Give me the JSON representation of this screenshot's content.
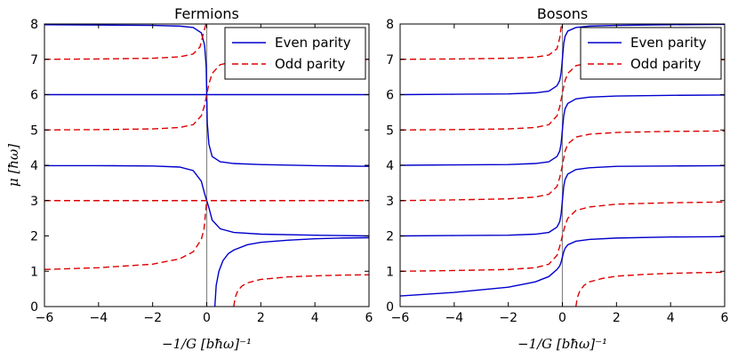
{
  "chart_data": [
    {
      "type": "line",
      "title": "Fermions",
      "xlabel": "−1/G [bħω]⁻¹",
      "ylabel": "μ [ħω]",
      "xlim": [
        -6,
        6
      ],
      "ylim": [
        0,
        8
      ],
      "xticks": [
        "−6",
        "−4",
        "−2",
        "0",
        "2",
        "4",
        "6"
      ],
      "yticks": [
        "0",
        "1",
        "2",
        "3",
        "4",
        "5",
        "6",
        "7",
        "8"
      ],
      "legend": {
        "position": "top-right",
        "entries": [
          "Even parity",
          "Odd parity"
        ]
      },
      "series": [
        {
          "name": "Even parity",
          "color": "#0000cc",
          "style": "solid",
          "x": [
            -6,
            -4,
            -2,
            -1,
            -0.5,
            -0.2,
            -0.08,
            -0.02,
            0,
            0.02,
            0.08,
            0.2,
            0.5,
            1,
            2,
            4,
            6
          ],
          "y": [
            7.98,
            7.97,
            7.96,
            7.94,
            7.9,
            7.75,
            7.4,
            6.8,
            6.0,
            5.2,
            4.6,
            4.25,
            4.1,
            4.05,
            4.02,
            3.99,
            3.97
          ]
        },
        {
          "name": "Even parity",
          "color": "#0000cc",
          "style": "solid",
          "x": [
            -6,
            6
          ],
          "y": [
            6.0,
            6.0
          ]
        },
        {
          "name": "Even parity",
          "color": "#0000cc",
          "style": "solid",
          "x": [
            -6,
            -4,
            -2,
            -1,
            -0.5,
            -0.2,
            -0.08,
            0,
            0.08,
            0.2,
            0.5,
            1,
            2,
            4,
            6
          ],
          "y": [
            3.99,
            3.99,
            3.98,
            3.95,
            3.85,
            3.55,
            3.2,
            3.0,
            2.8,
            2.45,
            2.2,
            2.1,
            2.05,
            2.02,
            2.0
          ]
        },
        {
          "name": "Even parity",
          "color": "#0000cc",
          "style": "solid",
          "x": [
            0.3,
            0.35,
            0.45,
            0.6,
            0.8,
            1,
            1.5,
            2,
            3,
            4,
            5,
            6
          ],
          "y": [
            0,
            0.6,
            1.0,
            1.3,
            1.5,
            1.6,
            1.75,
            1.82,
            1.88,
            1.92,
            1.94,
            1.95
          ]
        },
        {
          "name": "Odd parity",
          "color": "#dd0000",
          "style": "dashed",
          "x": [
            -6,
            -4,
            -2,
            -1,
            -0.5,
            -0.25,
            -0.1,
            -0.03
          ],
          "y": [
            7.0,
            7.01,
            7.03,
            7.07,
            7.15,
            7.35,
            7.8,
            8.0
          ]
        },
        {
          "name": "Odd parity",
          "color": "#dd0000",
          "style": "dashed",
          "x": [
            -6,
            -4,
            -2,
            -1,
            -0.5,
            -0.2,
            -0.08,
            0,
            0.08,
            0.2,
            0.5,
            1,
            2,
            4,
            6
          ],
          "y": [
            5.0,
            5.01,
            5.03,
            5.07,
            5.15,
            5.4,
            5.7,
            6.0,
            6.3,
            6.6,
            6.85,
            6.93,
            6.97,
            6.99,
            7.0
          ]
        },
        {
          "name": "Odd parity",
          "color": "#dd0000",
          "style": "dashed",
          "x": [
            -6,
            -4,
            -2,
            -1,
            -0.5,
            -0.2,
            -0.08,
            0,
            0.08,
            0.2,
            0.5,
            1,
            2,
            4,
            6
          ],
          "y": [
            3.0,
            3.0,
            3.0,
            3.0,
            3.0,
            3.0,
            3.0,
            3.0,
            3.0,
            3.0,
            3.0,
            3.0,
            3.0,
            3.0,
            3.0
          ]
        },
        {
          "name": "Odd parity",
          "color": "#dd0000",
          "style": "dashed",
          "x": [
            -6,
            -4,
            -2,
            -1,
            -0.5,
            -0.2,
            -0.1,
            -0.05,
            0
          ],
          "y": [
            1.05,
            1.1,
            1.2,
            1.35,
            1.55,
            1.9,
            2.2,
            2.6,
            3.0
          ]
        },
        {
          "name": "Odd parity",
          "color": "#dd0000",
          "style": "dashed",
          "x": [
            1.0,
            1.05,
            1.15,
            1.3,
            1.5,
            2,
            3,
            4,
            5,
            6
          ],
          "y": [
            0,
            0.25,
            0.45,
            0.58,
            0.67,
            0.77,
            0.84,
            0.87,
            0.89,
            0.9
          ]
        }
      ]
    },
    {
      "type": "line",
      "title": "Bosons",
      "xlabel": "−1/G [bħω]⁻¹",
      "ylabel": "",
      "xlim": [
        -6,
        6
      ],
      "ylim": [
        0,
        8
      ],
      "xticks": [
        "−6",
        "−4",
        "−2",
        "0",
        "2",
        "4",
        "6"
      ],
      "yticks": [
        "0",
        "1",
        "2",
        "3",
        "4",
        "5",
        "6",
        "7",
        "8"
      ],
      "legend": {
        "position": "top-right",
        "entries": [
          "Even parity",
          "Odd parity"
        ]
      },
      "series": [
        {
          "name": "Even parity",
          "color": "#0000cc",
          "style": "solid",
          "x": [
            -6,
            -4,
            -2,
            -1,
            -0.5,
            -0.2,
            -0.1,
            -0.05,
            0,
            0.05,
            0.1,
            0.2,
            0.5,
            1,
            2,
            4,
            6
          ],
          "y": [
            0.3,
            0.4,
            0.55,
            0.7,
            0.85,
            1.05,
            1.15,
            1.25,
            1.4,
            1.55,
            1.65,
            1.75,
            1.85,
            1.9,
            1.94,
            1.97,
            1.98
          ]
        },
        {
          "name": "Even parity",
          "color": "#0000cc",
          "style": "solid",
          "x": [
            -6,
            -4,
            -2,
            -1,
            -0.5,
            -0.2,
            -0.1,
            -0.05,
            0,
            0.05,
            0.1,
            0.2,
            0.5,
            1,
            2,
            4,
            6
          ],
          "y": [
            2.0,
            2.01,
            2.02,
            2.05,
            2.1,
            2.25,
            2.4,
            2.6,
            3.0,
            3.4,
            3.6,
            3.75,
            3.88,
            3.93,
            3.97,
            3.98,
            3.99
          ]
        },
        {
          "name": "Even parity",
          "color": "#0000cc",
          "style": "solid",
          "x": [
            -6,
            -4,
            -2,
            -1,
            -0.5,
            -0.2,
            -0.1,
            -0.05,
            0,
            0.05,
            0.1,
            0.2,
            0.5,
            1,
            2,
            4,
            6
          ],
          "y": [
            4.0,
            4.01,
            4.02,
            4.05,
            4.1,
            4.25,
            4.4,
            4.6,
            5.0,
            5.4,
            5.6,
            5.75,
            5.88,
            5.93,
            5.96,
            5.98,
            5.99
          ]
        },
        {
          "name": "Even parity",
          "color": "#0000cc",
          "style": "solid",
          "x": [
            -6,
            -4,
            -2,
            -1,
            -0.5,
            -0.2,
            -0.1,
            -0.05,
            0,
            0.05,
            0.1,
            0.2,
            0.5,
            1,
            2,
            4,
            6
          ],
          "y": [
            6.0,
            6.01,
            6.02,
            6.05,
            6.1,
            6.25,
            6.4,
            6.6,
            7.0,
            7.45,
            7.65,
            7.8,
            7.9,
            7.94,
            7.96,
            7.98,
            7.99
          ]
        },
        {
          "name": "Odd parity",
          "color": "#dd0000",
          "style": "dashed",
          "x": [
            -6,
            -4,
            -2,
            -1,
            -0.5,
            -0.2,
            -0.1,
            -0.03
          ],
          "y": [
            7.0,
            7.01,
            7.03,
            7.06,
            7.12,
            7.3,
            7.6,
            8.0
          ]
        },
        {
          "name": "Odd parity",
          "color": "#dd0000",
          "style": "dashed",
          "x": [
            -6,
            -4,
            -2,
            -1,
            -0.5,
            -0.2,
            -0.1,
            0,
            0.1,
            0.2,
            0.5,
            1,
            2,
            4,
            6
          ],
          "y": [
            5.0,
            5.01,
            5.03,
            5.07,
            5.15,
            5.4,
            5.65,
            6.05,
            6.4,
            6.6,
            6.82,
            6.9,
            6.95,
            6.98,
            6.99
          ]
        },
        {
          "name": "Odd parity",
          "color": "#dd0000",
          "style": "dashed",
          "x": [
            -6,
            -4,
            -2,
            -1,
            -0.5,
            -0.2,
            -0.1,
            0,
            0.1,
            0.2,
            0.5,
            1,
            2,
            4,
            6
          ],
          "y": [
            3.0,
            3.02,
            3.05,
            3.1,
            3.18,
            3.4,
            3.65,
            4.0,
            4.4,
            4.6,
            4.8,
            4.88,
            4.93,
            4.96,
            4.97
          ]
        },
        {
          "name": "Odd parity",
          "color": "#dd0000",
          "style": "dashed",
          "x": [
            -6,
            -4,
            -2,
            -1,
            -0.5,
            -0.2,
            -0.1,
            0,
            0.1,
            0.2,
            0.5,
            1,
            2,
            4,
            6
          ],
          "y": [
            1.0,
            1.02,
            1.05,
            1.1,
            1.2,
            1.45,
            1.7,
            2.0,
            2.3,
            2.5,
            2.72,
            2.82,
            2.9,
            2.94,
            2.96
          ]
        },
        {
          "name": "Odd parity",
          "color": "#dd0000",
          "style": "dashed",
          "x": [
            0.5,
            0.55,
            0.65,
            0.8,
            1.0,
            1.5,
            2,
            3,
            4,
            5,
            6
          ],
          "y": [
            0,
            0.25,
            0.45,
            0.6,
            0.7,
            0.8,
            0.86,
            0.91,
            0.94,
            0.96,
            0.97
          ]
        }
      ]
    }
  ]
}
